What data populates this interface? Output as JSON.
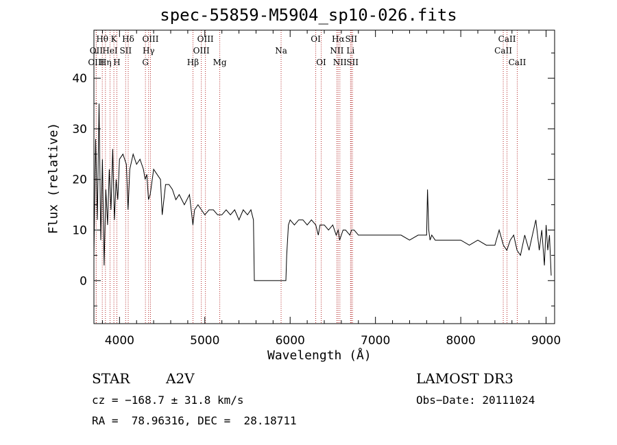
{
  "chart_data": {
    "type": "line",
    "title": "spec-55859-M5904_sp10-026.fits",
    "xlabel": "Wavelength (Å)",
    "ylabel": "Flux (relative)",
    "xlim": [
      3700,
      9100
    ],
    "ylim": [
      -8.5,
      49.5
    ],
    "xticks": [
      4000,
      5000,
      6000,
      7000,
      8000,
      9000
    ],
    "yticks": [
      0,
      10,
      20,
      30,
      40
    ],
    "series": [
      {
        "name": "flux",
        "x": [
          3700,
          3720,
          3740,
          3760,
          3780,
          3800,
          3820,
          3840,
          3860,
          3880,
          3900,
          3920,
          3940,
          3960,
          3980,
          4000,
          4040,
          4080,
          4100,
          4120,
          4160,
          4200,
          4240,
          4280,
          4300,
          4320,
          4340,
          4360,
          4400,
          4440,
          4480,
          4500,
          4540,
          4580,
          4620,
          4660,
          4700,
          4760,
          4820,
          4860,
          4880,
          4920,
          4960,
          5000,
          5050,
          5100,
          5150,
          5200,
          5250,
          5300,
          5350,
          5400,
          5450,
          5500,
          5540,
          5570,
          5580,
          5600,
          5700,
          5800,
          5900,
          5950,
          5960,
          5980,
          6000,
          6050,
          6100,
          6150,
          6200,
          6250,
          6300,
          6330,
          6350,
          6400,
          6450,
          6500,
          6540,
          6563,
          6580,
          6620,
          6650,
          6700,
          6720,
          6750,
          6800,
          6900,
          7000,
          7100,
          7200,
          7300,
          7400,
          7500,
          7580,
          7600,
          7610,
          7625,
          7640,
          7660,
          7700,
          7800,
          7900,
          8000,
          8100,
          8200,
          8300,
          8400,
          8450,
          8500,
          8540,
          8580,
          8620,
          8660,
          8700,
          8750,
          8800,
          8840,
          8880,
          8920,
          8950,
          8980,
          9000,
          9020,
          9040,
          9060
        ],
        "y": [
          5,
          28,
          12,
          35,
          8,
          24,
          3,
          18,
          11,
          22,
          14,
          26,
          12,
          20,
          16,
          24,
          25,
          23,
          14,
          22,
          25,
          23,
          24,
          22,
          20,
          21,
          16,
          17,
          22,
          21,
          20,
          13,
          19,
          19,
          18,
          16,
          17,
          15,
          17,
          11,
          14,
          15,
          14,
          13,
          14,
          14,
          13,
          13,
          14,
          13,
          14,
          12,
          14,
          13,
          14,
          12,
          0,
          0,
          0,
          0,
          0,
          0,
          5,
          11,
          12,
          11,
          12,
          12,
          11,
          12,
          11,
          9,
          11,
          11,
          10,
          11,
          9,
          10,
          8,
          10,
          10,
          9,
          10,
          10,
          9,
          9,
          9,
          9,
          9,
          9,
          8,
          9,
          9,
          9,
          18,
          10,
          8,
          9,
          8,
          8,
          8,
          8,
          7,
          8,
          7,
          7,
          10,
          7,
          6,
          8,
          9,
          6,
          5,
          9,
          6,
          9,
          12,
          6,
          10,
          3,
          11,
          6,
          9,
          1
        ]
      }
    ],
    "lines": [
      {
        "label": "OII",
        "x": 3727,
        "row": 1
      },
      {
        "label": "OIII",
        "x": 3727,
        "row": 2
      },
      {
        "label": "Hθ",
        "x": 3798,
        "row": 0
      },
      {
        "label": "Hη",
        "x": 3835,
        "row": 2
      },
      {
        "label": "HeI",
        "x": 3889,
        "row": 1
      },
      {
        "label": "K",
        "x": 3934,
        "row": 0
      },
      {
        "label": "H",
        "x": 3969,
        "row": 2
      },
      {
        "label": "SII",
        "x": 4072,
        "row": 1
      },
      {
        "label": "Hδ",
        "x": 4102,
        "row": 0
      },
      {
        "label": "G",
        "x": 4304,
        "row": 2
      },
      {
        "label": "Hγ",
        "x": 4341,
        "row": 1
      },
      {
        "label": "OIII",
        "x": 4363,
        "row": 0
      },
      {
        "label": "Hβ",
        "x": 4861,
        "row": 2
      },
      {
        "label": "OIII",
        "x": 4959,
        "row": 1
      },
      {
        "label": "OIII",
        "x": 5007,
        "row": 0
      },
      {
        "label": "Mg",
        "x": 5175,
        "row": 2
      },
      {
        "label": "Na",
        "x": 5894,
        "row": 1
      },
      {
        "label": "OI",
        "x": 6300,
        "row": 0
      },
      {
        "label": "OI",
        "x": 6364,
        "row": 2
      },
      {
        "label": "NII",
        "x": 6548,
        "row": 1
      },
      {
        "label": "Hα",
        "x": 6563,
        "row": 0
      },
      {
        "label": "NII",
        "x": 6583,
        "row": 2
      },
      {
        "label": "Li",
        "x": 6708,
        "row": 1
      },
      {
        "label": "SII",
        "x": 6716,
        "row": 0
      },
      {
        "label": "SII",
        "x": 6731,
        "row": 2
      },
      {
        "label": "CaII",
        "x": 8498,
        "row": 1
      },
      {
        "label": "CaII",
        "x": 8542,
        "row": 0
      },
      {
        "label": "CaII",
        "x": 8662,
        "row": 2
      }
    ],
    "line_color": "#b22222"
  },
  "info": {
    "class": "STAR",
    "subclass": "A2V",
    "survey": "LAMOST DR3",
    "cz": "cz = −168.7 ± 31.8 km/s",
    "obs_date": "Obs−Date: 20111024",
    "radec": "RA =  78.96316, DEC =  28.18711"
  }
}
